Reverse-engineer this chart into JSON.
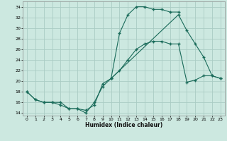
{
  "xlabel": "Humidex (Indice chaleur)",
  "background_color": "#cce8e0",
  "grid_color": "#aaccc4",
  "line_color": "#1a6b5a",
  "xlim": [
    -0.5,
    23.5
  ],
  "ylim": [
    13.5,
    35.0
  ],
  "xticks": [
    0,
    1,
    2,
    3,
    4,
    5,
    6,
    7,
    8,
    9,
    10,
    11,
    12,
    13,
    14,
    15,
    16,
    17,
    18,
    19,
    20,
    21,
    22,
    23
  ],
  "yticks": [
    14,
    16,
    18,
    20,
    22,
    24,
    26,
    28,
    30,
    32,
    34
  ],
  "line1_x": [
    0,
    1,
    2,
    3,
    4,
    5,
    6,
    7,
    8,
    9,
    10,
    11,
    12,
    13,
    14,
    15,
    16,
    17,
    18
  ],
  "line1_y": [
    18,
    16.5,
    16,
    16,
    16,
    14.8,
    14.8,
    14.0,
    16,
    19,
    20.5,
    29,
    32.5,
    34,
    34,
    33.5,
    33.5,
    33,
    33
  ],
  "line2_x": [
    0,
    1,
    2,
    3,
    4,
    5,
    6,
    7,
    8,
    9,
    10,
    18,
    19,
    20,
    21,
    22,
    23
  ],
  "line2_y": [
    18,
    16.5,
    16,
    16,
    15.5,
    14.8,
    14.8,
    14.5,
    15.5,
    19.5,
    20.5,
    32.5,
    29.5,
    27,
    24.5,
    21,
    20.5
  ],
  "line3_x": [
    10,
    11,
    12,
    13,
    14,
    15,
    16,
    17,
    18,
    19,
    20,
    21,
    22,
    23
  ],
  "line3_y": [
    20.5,
    22,
    24,
    26,
    27,
    27.5,
    27.5,
    27,
    27,
    19.8,
    20.2,
    21,
    21,
    20.5
  ]
}
